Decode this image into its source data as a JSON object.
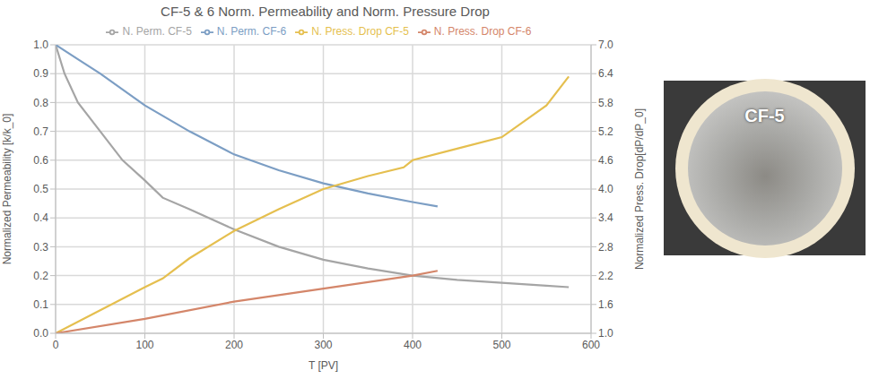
{
  "chart_data": {
    "type": "line",
    "title": "CF-5 & 6 Norm. Permeability and Norm. Pressure Drop",
    "x_label": "T [PV]",
    "y_label": "Normalized Permeability [k/k_0]",
    "y2_label": "Normalized Press. Drop[dP/dP_0]",
    "xlim": [
      0,
      600
    ],
    "xticks": [
      0,
      100,
      200,
      300,
      400,
      500,
      600
    ],
    "ylim": [
      0,
      1
    ],
    "yticks": [
      {
        "value": 0,
        "label": "0.0"
      },
      0.1,
      0.2,
      0.3,
      0.4,
      0.5,
      0.6,
      0.7,
      0.8,
      0.9,
      {
        "value": 1,
        "label": "1.0"
      }
    ],
    "y2lim": [
      1,
      7
    ],
    "y2ticks": [
      {
        "value": 1,
        "label": "1.0"
      },
      1.6,
      2.2,
      2.8,
      3.4,
      {
        "value": 4,
        "label": "4.0"
      },
      4.6,
      5.2,
      5.8,
      6.4,
      {
        "value": 7,
        "label": "7.0"
      }
    ],
    "grid": true,
    "legend": "top",
    "annotations": [
      "CF-5"
    ],
    "series": [
      {
        "name": "N. Perm. CF-5",
        "color": "#a5a5a5",
        "x": [
          0,
          10,
          25,
          50,
          75,
          100,
          120,
          150,
          200,
          250,
          300,
          350,
          400,
          450,
          500,
          550,
          575
        ],
        "values": [
          1.0,
          0.9,
          0.8,
          0.7,
          0.6,
          0.53,
          0.47,
          0.43,
          0.36,
          0.3,
          0.255,
          0.225,
          0.2,
          0.185,
          0.175,
          0.165,
          0.16
        ]
      },
      {
        "name": "N. Perm. CF-6",
        "color": "#7c9ec4",
        "x": [
          0,
          25,
          50,
          100,
          150,
          200,
          250,
          300,
          350,
          400,
          428
        ],
        "values": [
          1.0,
          0.95,
          0.9,
          0.79,
          0.7,
          0.62,
          0.565,
          0.52,
          0.485,
          0.455,
          0.44
        ]
      },
      {
        "name": "N. Press. Drop CF-5",
        "color": "#e5bf4f",
        "axis": "y2",
        "x": [
          0,
          50,
          100,
          120,
          150,
          200,
          250,
          300,
          350,
          390,
          400,
          450,
          500,
          550,
          575
        ],
        "values": [
          1.0,
          1.48,
          1.96,
          2.14,
          2.56,
          3.13,
          3.58,
          4.0,
          4.27,
          4.45,
          4.6,
          4.84,
          5.08,
          5.74,
          6.34
        ]
      },
      {
        "name": "N. Press. Drop CF-6",
        "color": "#d4866a",
        "axis": "y2",
        "x": [
          0,
          100,
          200,
          300,
          400,
          428
        ],
        "values": [
          1.0,
          1.3,
          1.66,
          1.93,
          2.2,
          2.3
        ]
      }
    ]
  }
}
